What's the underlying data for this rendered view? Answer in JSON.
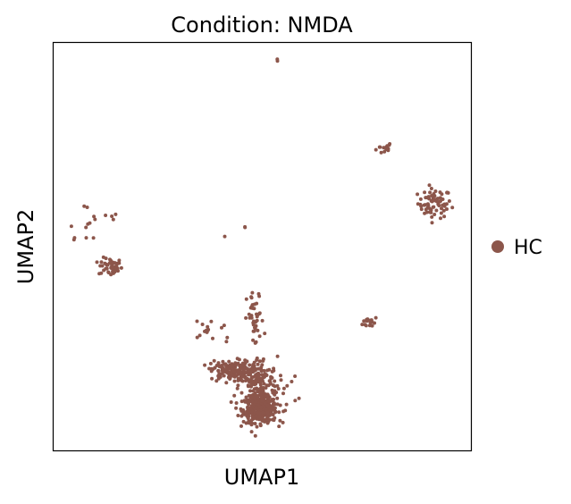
{
  "chart_data": {
    "type": "scatter",
    "title": "Condition: NMDA",
    "xlabel": "UMAP1",
    "ylabel": "UMAP2",
    "ticks_shown": false,
    "grid": false,
    "legend_position": "right",
    "legend": [
      {
        "label": "HC",
        "color": "#8c564b"
      }
    ],
    "xlim": [
      0,
      100
    ],
    "ylim": [
      0,
      100
    ],
    "series": [
      {
        "name": "HC",
        "color": "#8c564b",
        "clusters": [
          {
            "cx": 53.8,
            "cy": 94.6,
            "sx": 0.5,
            "sy": 1.0,
            "n": 2
          },
          {
            "cx": 79.3,
            "cy": 74.2,
            "sx": 1.0,
            "sy": 0.8,
            "n": 14
          },
          {
            "cx": 91.3,
            "cy": 60.6,
            "sx": 2.0,
            "sy": 1.8,
            "n": 70
          },
          {
            "cx": 13.6,
            "cy": 45.0,
            "sx": 1.4,
            "sy": 1.1,
            "n": 50
          },
          {
            "cx": 9.0,
            "cy": 56.0,
            "sx": 4.5,
            "sy": 3.5,
            "n": 16
          },
          {
            "cx": 75.9,
            "cy": 31.5,
            "sx": 0.9,
            "sy": 0.7,
            "n": 16
          },
          {
            "cx": 46.0,
            "cy": 55.5,
            "sx": 0.8,
            "sy": 1.2,
            "n": 2
          },
          {
            "cx": 41.0,
            "cy": 52.5,
            "sx": 0.2,
            "sy": 0.2,
            "n": 1
          },
          {
            "cx": 49.5,
            "cy": 10.0,
            "sx": 2.0,
            "sy": 1.6,
            "n": 380
          },
          {
            "cx": 49.0,
            "cy": 17.0,
            "sx": 2.3,
            "sy": 3.0,
            "n": 160
          },
          {
            "cx": 42.5,
            "cy": 19.5,
            "sx": 2.4,
            "sy": 1.3,
            "n": 150
          },
          {
            "cx": 48.3,
            "cy": 32.0,
            "sx": 1.0,
            "sy": 3.5,
            "n": 40
          },
          {
            "cx": 37.5,
            "cy": 29.5,
            "sx": 3.0,
            "sy": 2.0,
            "n": 16
          },
          {
            "cx": 54.5,
            "cy": 14.5,
            "sx": 2.0,
            "sy": 1.8,
            "n": 14
          }
        ]
      }
    ]
  }
}
